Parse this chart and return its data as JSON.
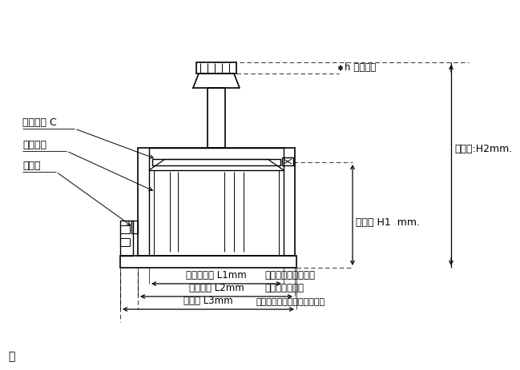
{
  "bg_color": "#ffffff",
  "line_color": "#000000",
  "label_恒压电刷": "恒压电刷 C",
  "label_单层线包": "单层线包",
  "label_接线板": "接线板",
  "label_h手轮": "h 手轮高度",
  "label_总高度H2": "总高度:H2mm.",
  "label_总高度H1": "总高度 H1  mm.",
  "label_L1": "安装孔距离 L1mm",
  "label_L2": "底座宽度 L2mm",
  "label_L3": "总宽度 L3mm",
  "label_中心柱": "中心柱高度可以改动",
  "label_正方形": "正方形安装底座",
  "label_包括": "（包括接线板和接线柱端子）"
}
